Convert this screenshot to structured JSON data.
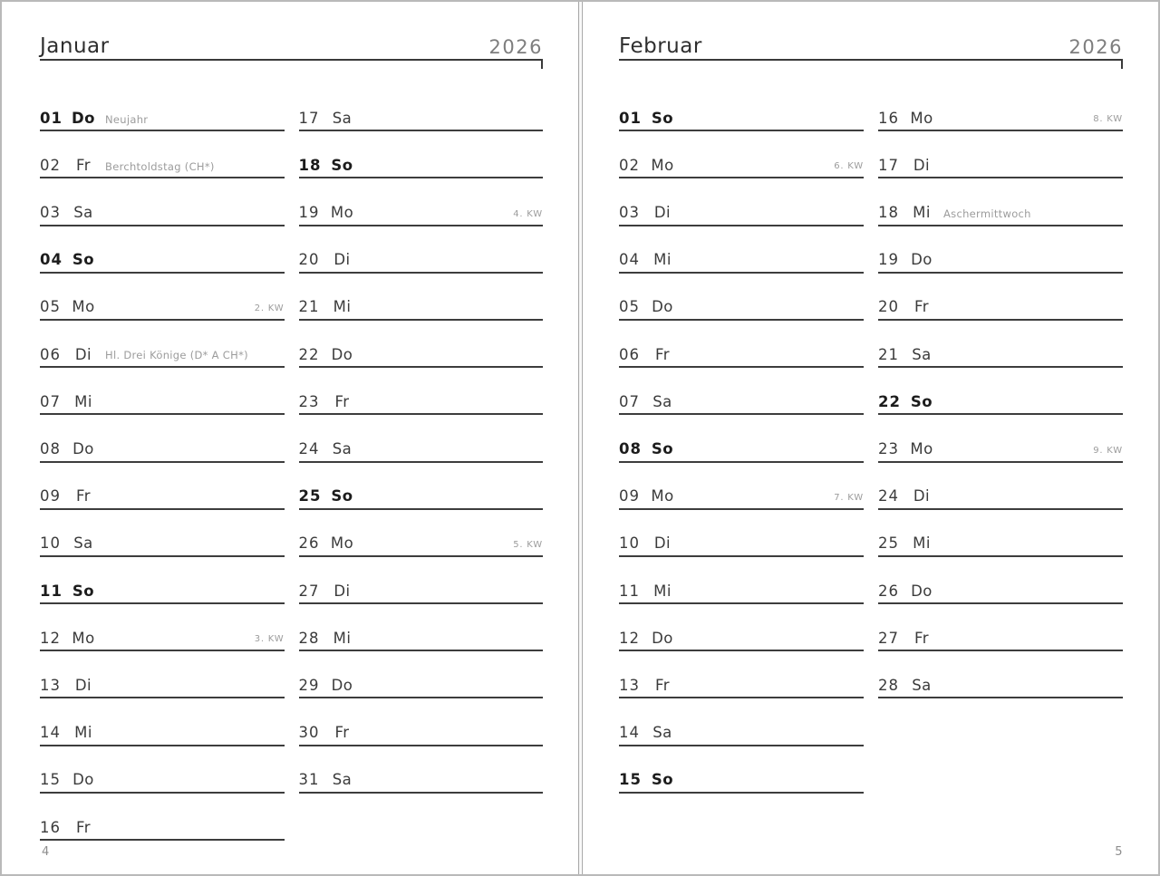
{
  "colors": {
    "ink": "#3b3b3b",
    "bold_ink": "#1c1c1c",
    "muted": "#9c9c9c",
    "rule": "#3d3d3d",
    "frame": "#b9b9b9"
  },
  "pages": [
    {
      "month": "Januar",
      "year": "2026",
      "page_number": "4",
      "columns": [
        [
          {
            "day": "01",
            "wd": "Do",
            "note": "Neujahr",
            "kw": "",
            "bold": true
          },
          {
            "day": "02",
            "wd": "Fr",
            "note": "Berchtoldstag (CH*)",
            "kw": "",
            "bold": false
          },
          {
            "day": "03",
            "wd": "Sa",
            "note": "",
            "kw": "",
            "bold": false
          },
          {
            "day": "04",
            "wd": "So",
            "note": "",
            "kw": "",
            "bold": true
          },
          {
            "day": "05",
            "wd": "Mo",
            "note": "",
            "kw": "2. KW",
            "bold": false
          },
          {
            "day": "06",
            "wd": "Di",
            "note": "Hl. Drei Könige (D* A CH*)",
            "kw": "",
            "bold": false
          },
          {
            "day": "07",
            "wd": "Mi",
            "note": "",
            "kw": "",
            "bold": false
          },
          {
            "day": "08",
            "wd": "Do",
            "note": "",
            "kw": "",
            "bold": false
          },
          {
            "day": "09",
            "wd": "Fr",
            "note": "",
            "kw": "",
            "bold": false
          },
          {
            "day": "10",
            "wd": "Sa",
            "note": "",
            "kw": "",
            "bold": false
          },
          {
            "day": "11",
            "wd": "So",
            "note": "",
            "kw": "",
            "bold": true
          },
          {
            "day": "12",
            "wd": "Mo",
            "note": "",
            "kw": "3. KW",
            "bold": false
          },
          {
            "day": "13",
            "wd": "Di",
            "note": "",
            "kw": "",
            "bold": false
          },
          {
            "day": "14",
            "wd": "Mi",
            "note": "",
            "kw": "",
            "bold": false
          },
          {
            "day": "15",
            "wd": "Do",
            "note": "",
            "kw": "",
            "bold": false
          },
          {
            "day": "16",
            "wd": "Fr",
            "note": "",
            "kw": "",
            "bold": false
          }
        ],
        [
          {
            "day": "17",
            "wd": "Sa",
            "note": "",
            "kw": "",
            "bold": false
          },
          {
            "day": "18",
            "wd": "So",
            "note": "",
            "kw": "",
            "bold": true
          },
          {
            "day": "19",
            "wd": "Mo",
            "note": "",
            "kw": "4. KW",
            "bold": false
          },
          {
            "day": "20",
            "wd": "Di",
            "note": "",
            "kw": "",
            "bold": false
          },
          {
            "day": "21",
            "wd": "Mi",
            "note": "",
            "kw": "",
            "bold": false
          },
          {
            "day": "22",
            "wd": "Do",
            "note": "",
            "kw": "",
            "bold": false
          },
          {
            "day": "23",
            "wd": "Fr",
            "note": "",
            "kw": "",
            "bold": false
          },
          {
            "day": "24",
            "wd": "Sa",
            "note": "",
            "kw": "",
            "bold": false
          },
          {
            "day": "25",
            "wd": "So",
            "note": "",
            "kw": "",
            "bold": true
          },
          {
            "day": "26",
            "wd": "Mo",
            "note": "",
            "kw": "5. KW",
            "bold": false
          },
          {
            "day": "27",
            "wd": "Di",
            "note": "",
            "kw": "",
            "bold": false
          },
          {
            "day": "28",
            "wd": "Mi",
            "note": "",
            "kw": "",
            "bold": false
          },
          {
            "day": "29",
            "wd": "Do",
            "note": "",
            "kw": "",
            "bold": false
          },
          {
            "day": "30",
            "wd": "Fr",
            "note": "",
            "kw": "",
            "bold": false
          },
          {
            "day": "31",
            "wd": "Sa",
            "note": "",
            "kw": "",
            "bold": false
          }
        ]
      ]
    },
    {
      "month": "Februar",
      "year": "2026",
      "page_number": "5",
      "columns": [
        [
          {
            "day": "01",
            "wd": "So",
            "note": "",
            "kw": "",
            "bold": true
          },
          {
            "day": "02",
            "wd": "Mo",
            "note": "",
            "kw": "6. KW",
            "bold": false
          },
          {
            "day": "03",
            "wd": "Di",
            "note": "",
            "kw": "",
            "bold": false
          },
          {
            "day": "04",
            "wd": "Mi",
            "note": "",
            "kw": "",
            "bold": false
          },
          {
            "day": "05",
            "wd": "Do",
            "note": "",
            "kw": "",
            "bold": false
          },
          {
            "day": "06",
            "wd": "Fr",
            "note": "",
            "kw": "",
            "bold": false
          },
          {
            "day": "07",
            "wd": "Sa",
            "note": "",
            "kw": "",
            "bold": false
          },
          {
            "day": "08",
            "wd": "So",
            "note": "",
            "kw": "",
            "bold": true
          },
          {
            "day": "09",
            "wd": "Mo",
            "note": "",
            "kw": "7. KW",
            "bold": false
          },
          {
            "day": "10",
            "wd": "Di",
            "note": "",
            "kw": "",
            "bold": false
          },
          {
            "day": "11",
            "wd": "Mi",
            "note": "",
            "kw": "",
            "bold": false
          },
          {
            "day": "12",
            "wd": "Do",
            "note": "",
            "kw": "",
            "bold": false
          },
          {
            "day": "13",
            "wd": "Fr",
            "note": "",
            "kw": "",
            "bold": false
          },
          {
            "day": "14",
            "wd": "Sa",
            "note": "",
            "kw": "",
            "bold": false
          },
          {
            "day": "15",
            "wd": "So",
            "note": "",
            "kw": "",
            "bold": true
          }
        ],
        [
          {
            "day": "16",
            "wd": "Mo",
            "note": "",
            "kw": "8. KW",
            "bold": false
          },
          {
            "day": "17",
            "wd": "Di",
            "note": "",
            "kw": "",
            "bold": false
          },
          {
            "day": "18",
            "wd": "Mi",
            "note": "Aschermittwoch",
            "kw": "",
            "bold": false
          },
          {
            "day": "19",
            "wd": "Do",
            "note": "",
            "kw": "",
            "bold": false
          },
          {
            "day": "20",
            "wd": "Fr",
            "note": "",
            "kw": "",
            "bold": false
          },
          {
            "day": "21",
            "wd": "Sa",
            "note": "",
            "kw": "",
            "bold": false
          },
          {
            "day": "22",
            "wd": "So",
            "note": "",
            "kw": "",
            "bold": true
          },
          {
            "day": "23",
            "wd": "Mo",
            "note": "",
            "kw": "9. KW",
            "bold": false
          },
          {
            "day": "24",
            "wd": "Di",
            "note": "",
            "kw": "",
            "bold": false
          },
          {
            "day": "25",
            "wd": "Mi",
            "note": "",
            "kw": "",
            "bold": false
          },
          {
            "day": "26",
            "wd": "Do",
            "note": "",
            "kw": "",
            "bold": false
          },
          {
            "day": "27",
            "wd": "Fr",
            "note": "",
            "kw": "",
            "bold": false
          },
          {
            "day": "28",
            "wd": "Sa",
            "note": "",
            "kw": "",
            "bold": false
          }
        ]
      ]
    }
  ]
}
